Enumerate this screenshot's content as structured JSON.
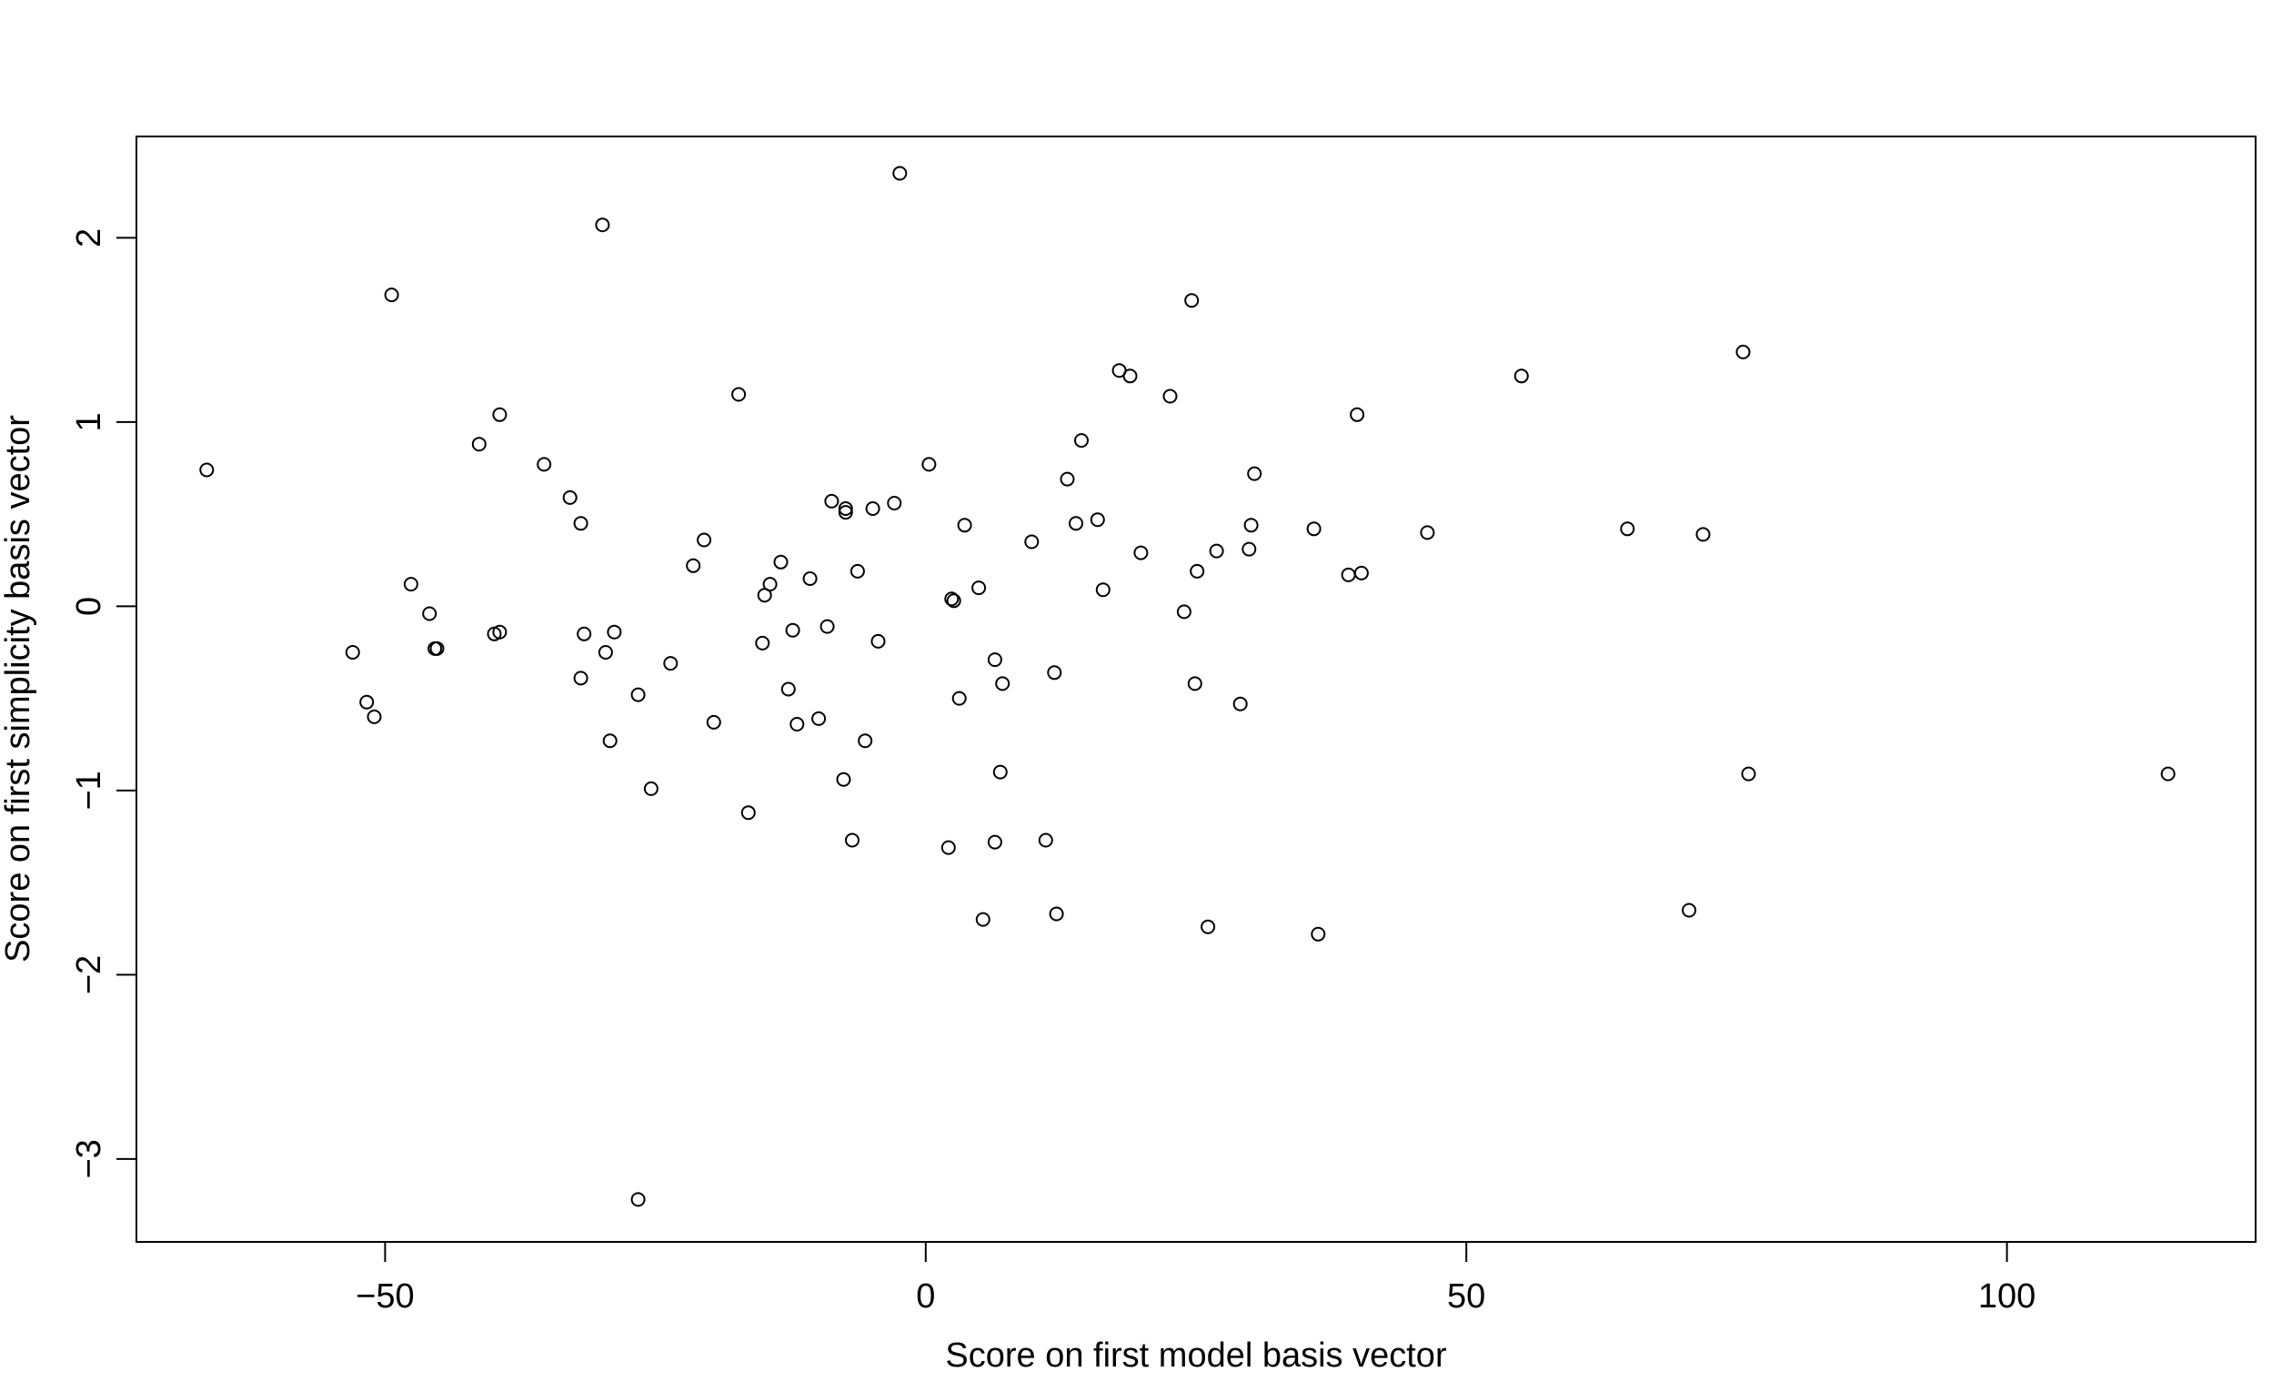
{
  "chart_data": {
    "type": "scatter",
    "title": "",
    "xlabel": "Score on first model basis vector",
    "ylabel": "Score on first simplicity basis vector",
    "xlim": [
      -73,
      123
    ],
    "ylim": [
      -3.45,
      2.55
    ],
    "xticks": [
      -50,
      0,
      50,
      100
    ],
    "xtick_labels": [
      "−50",
      "0",
      "50",
      "100"
    ],
    "yticks": [
      -3,
      -2,
      -1,
      0,
      1,
      2
    ],
    "ytick_labels": [
      "−3",
      "−2",
      "−1",
      "0",
      "1",
      "2"
    ],
    "grid": false,
    "legend": "none",
    "marker": "open-circle",
    "points": [
      [
        -66.5,
        0.74
      ],
      [
        -53.0,
        -0.25
      ],
      [
        -51.7,
        -0.52
      ],
      [
        -51.0,
        -0.6
      ],
      [
        -49.4,
        1.69
      ],
      [
        -47.6,
        0.12
      ],
      [
        -45.9,
        -0.04
      ],
      [
        -45.4,
        -0.23
      ],
      [
        -45.2,
        -0.23
      ],
      [
        -39.9,
        -0.15
      ],
      [
        -39.4,
        1.04
      ],
      [
        -39.4,
        -0.14
      ],
      [
        -41.3,
        0.88
      ],
      [
        -35.3,
        0.77
      ],
      [
        -32.9,
        0.59
      ],
      [
        -31.9,
        0.45
      ],
      [
        -31.9,
        -0.39
      ],
      [
        -31.6,
        -0.15
      ],
      [
        -29.6,
        -0.25
      ],
      [
        -29.9,
        2.07
      ],
      [
        -29.2,
        -0.73
      ],
      [
        -28.8,
        -0.14
      ],
      [
        -26.6,
        -0.48
      ],
      [
        -26.6,
        -3.22
      ],
      [
        -25.4,
        -0.99
      ],
      [
        -23.6,
        -0.31
      ],
      [
        -21.5,
        0.22
      ],
      [
        -20.5,
        0.36
      ],
      [
        -19.6,
        -0.63
      ],
      [
        -17.3,
        1.15
      ],
      [
        -16.4,
        -1.12
      ],
      [
        -15.1,
        -0.2
      ],
      [
        -14.9,
        0.06
      ],
      [
        -14.4,
        0.12
      ],
      [
        -13.4,
        0.24
      ],
      [
        -12.7,
        -0.45
      ],
      [
        -12.3,
        -0.13
      ],
      [
        -11.9,
        -0.64
      ],
      [
        -10.7,
        0.15
      ],
      [
        -9.9,
        -0.61
      ],
      [
        -9.1,
        -0.11
      ],
      [
        -8.7,
        0.57
      ],
      [
        -7.6,
        -0.94
      ],
      [
        -7.4,
        0.51
      ],
      [
        -7.4,
        0.53
      ],
      [
        -6.8,
        -1.27
      ],
      [
        -6.3,
        0.19
      ],
      [
        -5.6,
        -0.73
      ],
      [
        -4.9,
        0.53
      ],
      [
        -4.4,
        -0.19
      ],
      [
        -2.9,
        0.56
      ],
      [
        -2.4,
        2.35
      ],
      [
        0.3,
        0.77
      ],
      [
        2.1,
        -1.31
      ],
      [
        2.4,
        0.04
      ],
      [
        2.6,
        0.03
      ],
      [
        3.1,
        -0.5
      ],
      [
        3.6,
        0.44
      ],
      [
        4.9,
        0.1
      ],
      [
        5.3,
        -1.7
      ],
      [
        6.4,
        -0.29
      ],
      [
        6.4,
        -1.28
      ],
      [
        6.9,
        -0.9
      ],
      [
        7.1,
        -0.42
      ],
      [
        9.8,
        0.35
      ],
      [
        11.1,
        -1.27
      ],
      [
        11.9,
        -0.36
      ],
      [
        12.1,
        -1.67
      ],
      [
        13.1,
        0.69
      ],
      [
        13.9,
        0.45
      ],
      [
        14.4,
        0.9
      ],
      [
        15.9,
        0.47
      ],
      [
        16.4,
        0.09
      ],
      [
        17.9,
        1.28
      ],
      [
        18.9,
        1.25
      ],
      [
        19.9,
        0.29
      ],
      [
        22.6,
        1.14
      ],
      [
        23.9,
        -0.03
      ],
      [
        24.6,
        1.66
      ],
      [
        24.9,
        -0.42
      ],
      [
        25.1,
        0.19
      ],
      [
        26.1,
        -1.74
      ],
      [
        26.9,
        0.3
      ],
      [
        29.1,
        -0.53
      ],
      [
        29.9,
        0.31
      ],
      [
        30.1,
        0.44
      ],
      [
        30.4,
        0.72
      ],
      [
        35.9,
        0.42
      ],
      [
        36.3,
        -1.78
      ],
      [
        39.1,
        0.17
      ],
      [
        39.9,
        1.04
      ],
      [
        40.3,
        0.18
      ],
      [
        46.4,
        0.4
      ],
      [
        55.1,
        1.25
      ],
      [
        64.9,
        0.42
      ],
      [
        70.6,
        -1.65
      ],
      [
        71.9,
        0.39
      ],
      [
        75.6,
        1.38
      ],
      [
        76.1,
        -0.91
      ],
      [
        114.9,
        -0.91
      ]
    ]
  }
}
